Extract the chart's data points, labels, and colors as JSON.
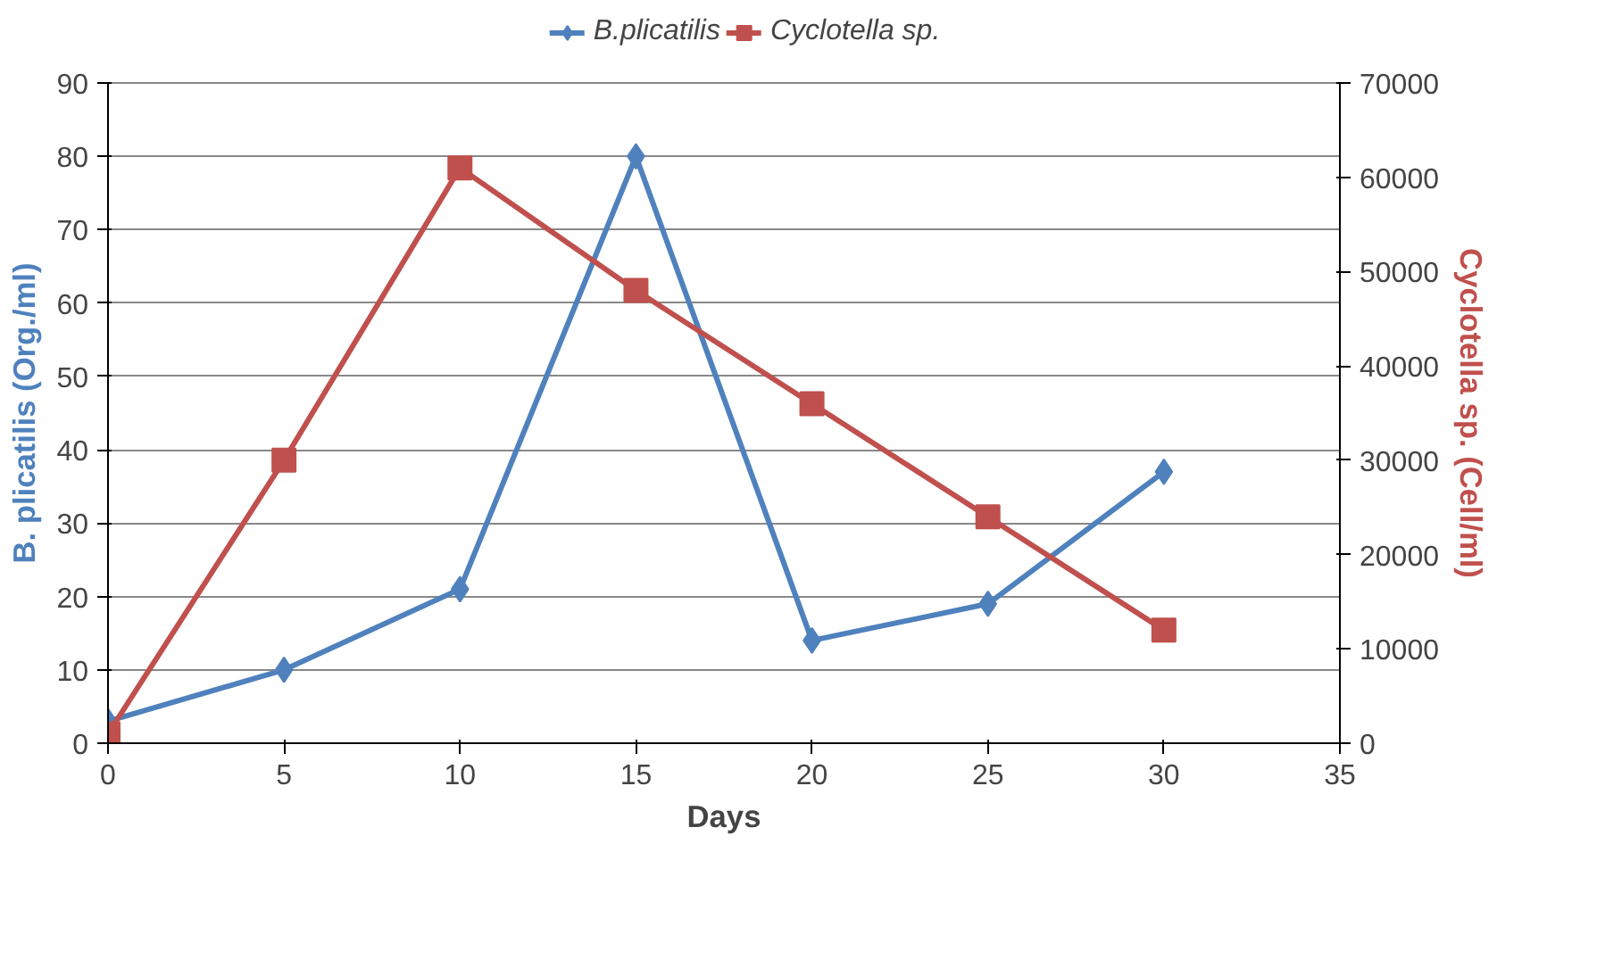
{
  "chart_data": {
    "type": "line",
    "xlabel": "Days",
    "ylabel": "B. plicatilis (Org./ml)",
    "y2label": "Cyclotella sp. (Cell/ml)",
    "xlim": [
      0,
      35
    ],
    "xticks": [
      0,
      5,
      10,
      15,
      20,
      25,
      30,
      35
    ],
    "ylim": [
      0,
      90
    ],
    "yticks": [
      0,
      10,
      20,
      30,
      40,
      50,
      60,
      70,
      80,
      90
    ],
    "y2lim": [
      0,
      70000
    ],
    "y2ticks": [
      0,
      10000,
      20000,
      30000,
      40000,
      50000,
      60000,
      70000
    ],
    "grid": "y",
    "legend": "top",
    "x": [
      0,
      5,
      10,
      15,
      20,
      25,
      30
    ],
    "series": [
      {
        "name": "B.plicatilis",
        "color": "#4f81bd",
        "marker": "diamond",
        "values": [
          3,
          10,
          21,
          80,
          14,
          19,
          37
        ]
      },
      {
        "name": "Cyclotella sp.",
        "color": "#c0504d",
        "marker": "square",
        "axis": "y2",
        "values": [
          1000,
          30000,
          61000,
          48000,
          36000,
          24000,
          12000
        ]
      }
    ]
  }
}
